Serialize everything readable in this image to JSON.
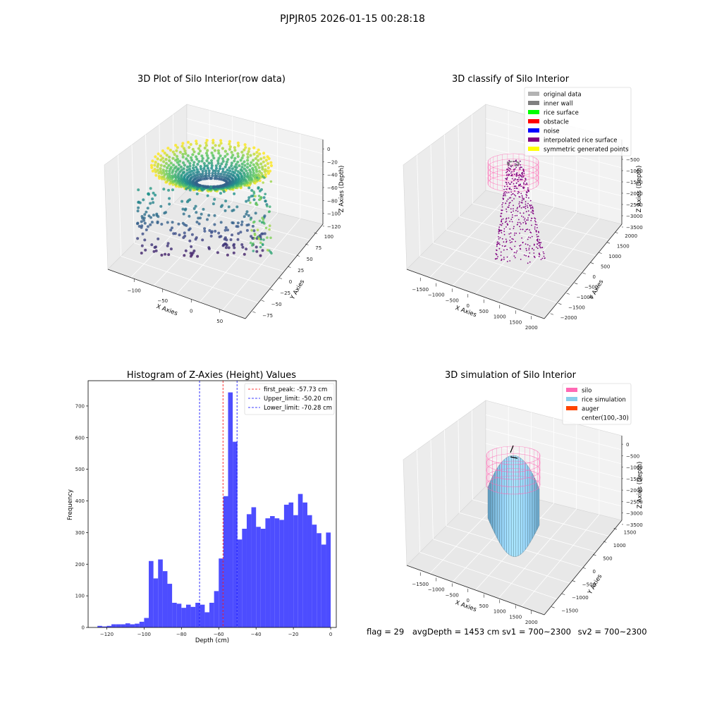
{
  "figure": {
    "suptitle": "PJPJR05 2026-01-15 00:28:18",
    "footer": {
      "flag": "flag = 29",
      "avg_depth": "avgDepth = 1453 cm",
      "sv1": "sv1 = 700~2300",
      "sv2": "sv2 = 700~2300"
    }
  },
  "chart_data": [
    {
      "type": "scatter",
      "projection": "3d",
      "title": "3D Plot of Silo Interior(row data)",
      "xlabel": "X Axies",
      "ylabel": "Y Axies",
      "zlabel": "Z Axies (Depth)",
      "x_ticks": [
        "−100",
        "−50",
        "0",
        "50"
      ],
      "y_ticks": [
        "−75",
        "−50",
        "−25",
        "0",
        "25",
        "50",
        "75",
        "100"
      ],
      "z_ticks": [
        "0",
        "−20",
        "−40",
        "−60",
        "−80",
        "−100",
        "−120"
      ],
      "colormap": "viridis",
      "grid": true
    },
    {
      "type": "scatter",
      "projection": "3d",
      "title": "3D classify of Silo Interior",
      "xlabel": "X Axies",
      "ylabel": "Y Axies",
      "zlabel": "Z Axies (Depth)",
      "x_ticks": [
        "−1500",
        "−1000",
        "−500",
        "0",
        "500",
        "1000",
        "1500",
        "2000"
      ],
      "y_ticks": [
        "−2000",
        "−1500",
        "−1000",
        "−500",
        "0",
        "500",
        "1000",
        "1500",
        "2000"
      ],
      "z_ticks": [
        "0",
        "−500",
        "−1000",
        "−1500",
        "−2000",
        "−2500",
        "−3000",
        "−3500"
      ],
      "legend_position": "top-right",
      "legend": [
        {
          "label": "original data",
          "color": "#b3b3b3"
        },
        {
          "label": "inner wall",
          "color": "#808080"
        },
        {
          "label": "rice surface",
          "color": "#00ff00"
        },
        {
          "label": "obstacle",
          "color": "#ff0000"
        },
        {
          "label": "noise",
          "color": "#0000ff"
        },
        {
          "label": "interpolated rice surface",
          "color": "#800080"
        },
        {
          "label": "symmetric generated points",
          "color": "#ffff00"
        }
      ],
      "grid": true
    },
    {
      "type": "bar",
      "title": "Histogram of Z-Axies (Height) Values",
      "xlabel": "Depth (cm)",
      "ylabel": "Frequency",
      "xlim": [
        -130,
        3
      ],
      "ylim": [
        0,
        780
      ],
      "x_ticks": [
        -120,
        -100,
        -80,
        -60,
        -40,
        -20,
        0
      ],
      "y_ticks": [
        0,
        100,
        200,
        300,
        400,
        500,
        600,
        700
      ],
      "bar_color": "#4d4dff",
      "bin_width": 2.5,
      "bins": [
        {
          "x0": -125,
          "v": 5
        },
        {
          "x0": -122.5,
          "v": 3
        },
        {
          "x0": -120,
          "v": 5
        },
        {
          "x0": -117.5,
          "v": 10
        },
        {
          "x0": -115,
          "v": 10
        },
        {
          "x0": -112.5,
          "v": 10
        },
        {
          "x0": -110,
          "v": 13
        },
        {
          "x0": -107.5,
          "v": 10
        },
        {
          "x0": -105,
          "v": 12
        },
        {
          "x0": -102.5,
          "v": 18
        },
        {
          "x0": -100,
          "v": 30
        },
        {
          "x0": -97.5,
          "v": 210
        },
        {
          "x0": -95,
          "v": 155
        },
        {
          "x0": -92.5,
          "v": 215
        },
        {
          "x0": -90,
          "v": 178
        },
        {
          "x0": -87.5,
          "v": 138
        },
        {
          "x0": -85,
          "v": 78
        },
        {
          "x0": -82.5,
          "v": 75
        },
        {
          "x0": -80,
          "v": 62
        },
        {
          "x0": -77.5,
          "v": 72
        },
        {
          "x0": -75,
          "v": 65
        },
        {
          "x0": -72.5,
          "v": 78
        },
        {
          "x0": -70,
          "v": 72
        },
        {
          "x0": -67.5,
          "v": 48
        },
        {
          "x0": -65,
          "v": 78
        },
        {
          "x0": -62.5,
          "v": 115
        },
        {
          "x0": -60,
          "v": 218
        },
        {
          "x0": -57.5,
          "v": 415
        },
        {
          "x0": -55,
          "v": 743
        },
        {
          "x0": -52.5,
          "v": 587
        },
        {
          "x0": -50,
          "v": 278
        },
        {
          "x0": -47.5,
          "v": 312
        },
        {
          "x0": -45,
          "v": 358
        },
        {
          "x0": -42.5,
          "v": 380
        },
        {
          "x0": -40,
          "v": 318
        },
        {
          "x0": -37.5,
          "v": 312
        },
        {
          "x0": -35,
          "v": 345
        },
        {
          "x0": -32.5,
          "v": 352
        },
        {
          "x0": -30,
          "v": 345
        },
        {
          "x0": -27.5,
          "v": 340
        },
        {
          "x0": -25,
          "v": 388
        },
        {
          "x0": -22.5,
          "v": 395
        },
        {
          "x0": -20,
          "v": 355
        },
        {
          "x0": -17.5,
          "v": 422
        },
        {
          "x0": -15,
          "v": 395
        },
        {
          "x0": -12.5,
          "v": 355
        },
        {
          "x0": -10,
          "v": 325
        },
        {
          "x0": -7.5,
          "v": 298
        },
        {
          "x0": -5,
          "v": 262
        },
        {
          "x0": -2.5,
          "v": 300
        }
      ],
      "vlines": [
        {
          "x": -57.73,
          "color": "#ff0000",
          "label": "first_peak: -57.73 cm"
        },
        {
          "x": -50.2,
          "color": "#0000ff",
          "label": "Upper_limit: -50.20 cm"
        },
        {
          "x": -70.28,
          "color": "#0000ff",
          "label": "Lower_limit: -70.28 cm"
        }
      ],
      "legend_position": "top-right",
      "grid": false
    },
    {
      "type": "area",
      "projection": "3d",
      "title": "3D simulation of Silo Interior",
      "xlabel": "X Axies",
      "ylabel": "Y Axies",
      "zlabel": "Z Axies (Depth)",
      "x_ticks": [
        "−1500",
        "−1000",
        "−500",
        "0",
        "500",
        "1000",
        "1500",
        "2000"
      ],
      "y_ticks": [
        "−1500",
        "−1000",
        "−500",
        "0",
        "500",
        "1000",
        "1500"
      ],
      "z_ticks": [
        "0",
        "−500",
        "−1000",
        "−1500",
        "−2000",
        "−2500",
        "−3000",
        "−3500"
      ],
      "legend_position": "top-right",
      "legend": [
        {
          "label": "silo",
          "color": "#ff69b4"
        },
        {
          "label": "rice simulation",
          "color": "#87ceeb"
        },
        {
          "label": "auger",
          "color": "#ff4500"
        },
        {
          "label": "center(100,-30)",
          "color": ""
        }
      ],
      "grid": true
    }
  ]
}
